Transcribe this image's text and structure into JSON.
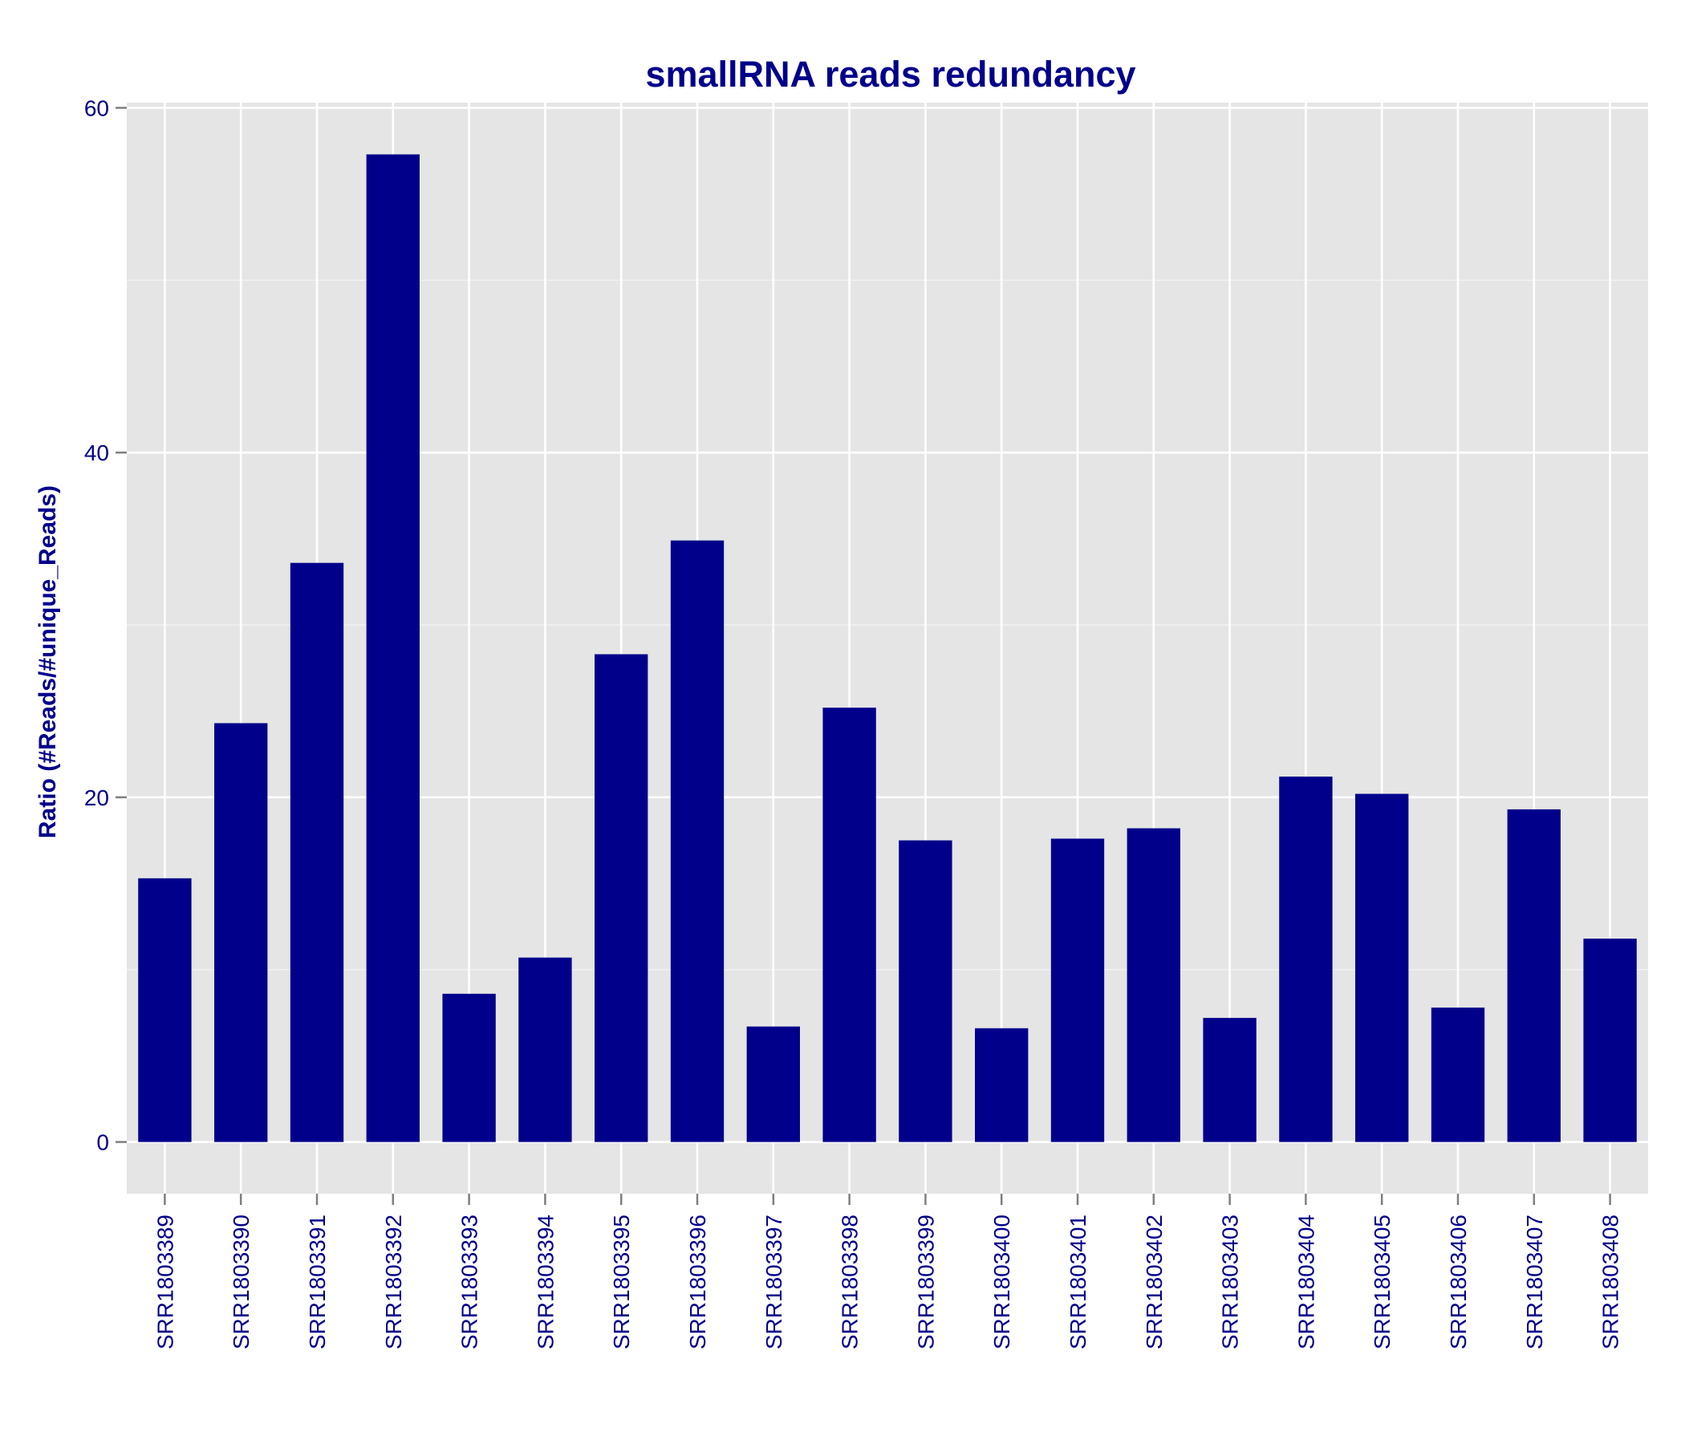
{
  "chart_data": {
    "type": "bar",
    "title": "smallRNA reads redundancy",
    "xlabel": "",
    "ylabel": "Ratio (#Reads/#unique_Reads)",
    "ylim": [
      -3,
      60.3
    ],
    "yticks": [
      0,
      20,
      40,
      60
    ],
    "grid": true,
    "legend": "none",
    "colors": {
      "bar": "#00008B",
      "text": "#00008B",
      "panel": "#E5E5E5",
      "grid": "#FFFFFF",
      "tick": "#7F7F7F"
    },
    "categories": [
      "SRR1803389",
      "SRR1803390",
      "SRR1803391",
      "SRR1803392",
      "SRR1803393",
      "SRR1803394",
      "SRR1803395",
      "SRR1803396",
      "SRR1803397",
      "SRR1803398",
      "SRR1803399",
      "SRR1803400",
      "SRR1803401",
      "SRR1803402",
      "SRR1803403",
      "SRR1803404",
      "SRR1803405",
      "SRR1803406",
      "SRR1803407",
      "SRR1803408"
    ],
    "values": [
      15.3,
      24.3,
      33.6,
      57.3,
      8.6,
      10.7,
      28.3,
      34.9,
      6.7,
      25.2,
      17.5,
      6.6,
      17.6,
      18.2,
      7.2,
      21.2,
      20.2,
      7.8,
      19.3,
      11.8
    ]
  }
}
